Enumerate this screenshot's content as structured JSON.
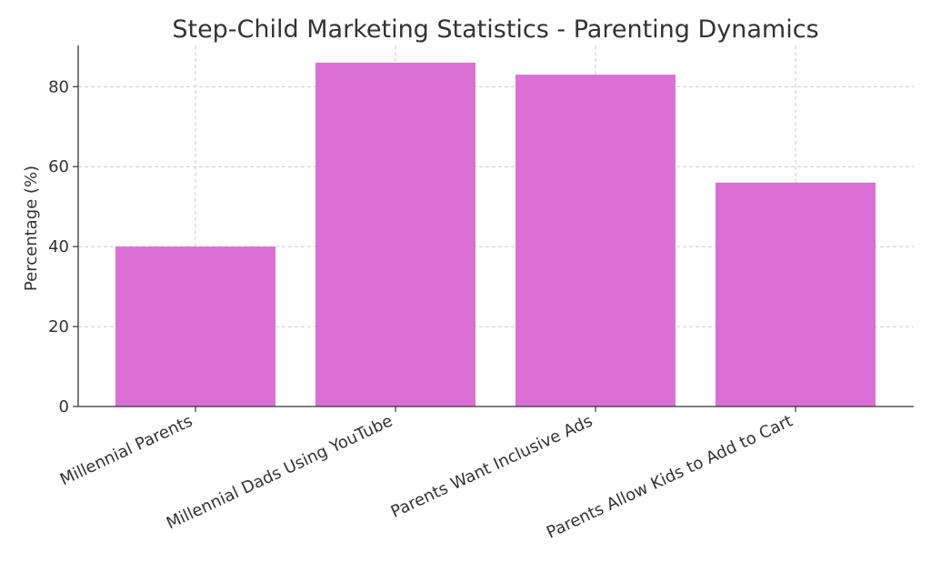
{
  "chart_data": {
    "type": "bar",
    "title": "Step-Child Marketing Statistics - Parenting Dynamics",
    "xlabel": "",
    "ylabel": "Percentage (%)",
    "categories": [
      "Millennial Parents",
      "Millennial Dads Using YouTube",
      "Parents Want Inclusive Ads",
      "Parents Allow Kids to Add to Cart"
    ],
    "values": [
      40,
      86,
      83,
      56
    ],
    "ylim": [
      0,
      90.3
    ],
    "yticks": [
      "0",
      "20",
      "40",
      "60",
      "80"
    ],
    "grid": true,
    "legend": "none",
    "bar_color": "#da70d6"
  }
}
